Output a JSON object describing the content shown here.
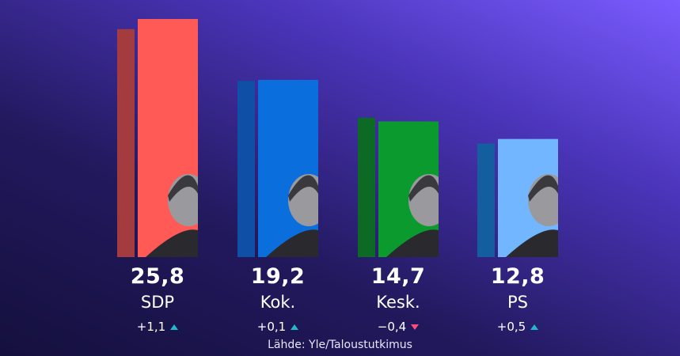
{
  "chart_data": {
    "type": "bar",
    "categories": [
      "SDP",
      "Kok.",
      "Kesk.",
      "PS"
    ],
    "series": [
      {
        "values": [
          24.7,
          19.1,
          15.1,
          12.3
        ]
      },
      {
        "values": [
          25.8,
          19.2,
          14.7,
          12.8
        ]
      }
    ],
    "value_labels": [
      "25,8",
      "19,2",
      "14,7",
      "12,8"
    ],
    "change_labels": [
      "+1,1",
      "+0,1",
      "−0,4",
      "+0,5"
    ],
    "change_direction": [
      "up",
      "up",
      "down",
      "up"
    ],
    "colors": {
      "previous": [
        "#a43b3f",
        "#0f4fa6",
        "#0d6a25",
        "#125e9f"
      ],
      "current": [
        "#ff5a55",
        "#0a6fdc",
        "#0a9a2e",
        "#71b6ff"
      ]
    },
    "ylim": [
      0,
      27
    ]
  },
  "source": "Lähde: Yle/Taloustutkimus"
}
